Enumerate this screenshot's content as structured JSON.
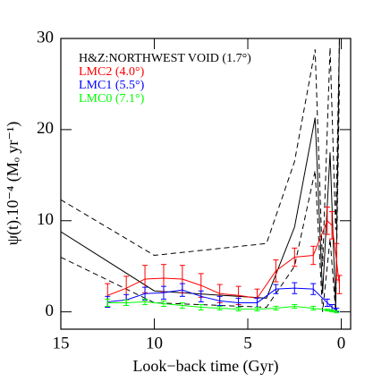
{
  "chart_data": {
    "type": "line",
    "xlabel": "Look−back time (Gyr)",
    "ylabel": "ψ(t).10⁻⁴ (Mₒ yr⁻¹)",
    "xlim": [
      15,
      -0.5
    ],
    "ylim": [
      -1.9,
      30
    ],
    "xticks": [
      15,
      10,
      5,
      0
    ],
    "yticks": [
      0,
      10,
      20,
      30
    ],
    "legend": "upper-left",
    "series": [
      {
        "name": "H&Z:NORTHWEST VOID (1.7°)",
        "color": "#000000",
        "x": [
          15,
          10,
          4,
          2.5,
          1.4,
          1.0,
          0.6,
          0.3,
          0.1
        ],
        "values": [
          8.8,
          2.3,
          1.5,
          9.3,
          21.3,
          2.0,
          17.5,
          0.3,
          30
        ]
      },
      {
        "color": "#000000",
        "dashed": true,
        "x": [
          15,
          10,
          4,
          2.5,
          1.4,
          1.0,
          0.6,
          0.3,
          0.1
        ],
        "values": [
          12.3,
          6.2,
          7.5,
          16.5,
          28.8,
          5.0,
          29,
          9,
          30
        ]
      },
      {
        "color": "#000000",
        "dashed": true,
        "x": [
          15,
          10,
          4,
          2.5,
          1.4,
          1.0,
          0.6,
          0.3,
          0.1
        ],
        "values": [
          6.0,
          1.0,
          0.5,
          5.0,
          15.5,
          0.0,
          8.0,
          0.0,
          25
        ]
      },
      {
        "name": "LMC2 (4.0°)",
        "color": "#ff0000",
        "x": [
          12.5,
          11.5,
          10.5,
          9.5,
          8.5,
          7.5,
          6.5,
          5.5,
          4.5,
          3.5,
          2.5,
          1.5,
          0.75,
          0.5,
          0.25,
          0.1
        ],
        "values": [
          1.8,
          2.6,
          3.6,
          3.7,
          3.6,
          2.9,
          2.0,
          1.8,
          1.5,
          4.5,
          6.0,
          6.2,
          10.0,
          9.5,
          5.5,
          3.0
        ],
        "errors": [
          1.3,
          1.3,
          1.5,
          1.5,
          1.5,
          1.3,
          1.0,
          1.0,
          1.0,
          1.2,
          1.0,
          1.0,
          1.5,
          1.5,
          2.0,
          1.0
        ]
      },
      {
        "name": "LMC1 (5.5°)",
        "color": "#0000ff",
        "x": [
          12.5,
          11.5,
          10.5,
          9.5,
          8.5,
          7.5,
          6.5,
          5.5,
          4.5,
          3.5,
          2.5,
          1.5,
          0.75,
          0.5,
          0.25
        ],
        "values": [
          1.1,
          1.3,
          2.0,
          2.1,
          2.4,
          1.7,
          1.2,
          1.0,
          1.0,
          2.5,
          2.6,
          2.5,
          1.0,
          0.5,
          0.2
        ],
        "errors": [
          0.6,
          0.6,
          0.7,
          0.7,
          0.7,
          0.6,
          0.5,
          0.5,
          0.5,
          0.5,
          0.6,
          0.6,
          0.4,
          0.3,
          0.2
        ]
      },
      {
        "name": "LMC0 (7.1°)",
        "color": "#00ff00",
        "x": [
          12.5,
          11.5,
          10.5,
          9.5,
          8.5,
          7.5,
          6.5,
          5.5,
          4.5,
          3.5,
          2.5,
          1.5,
          0.75,
          0.5,
          0.25
        ],
        "values": [
          1.0,
          1.0,
          1.1,
          0.9,
          0.7,
          0.5,
          0.4,
          0.3,
          0.3,
          0.4,
          0.6,
          0.4,
          0.2,
          0.1,
          0.0
        ],
        "errors": [
          0.4,
          0.3,
          0.3,
          0.3,
          0.3,
          0.3,
          0.2,
          0.2,
          0.2,
          0.2,
          0.2,
          0.2,
          0.1,
          0.1,
          0.1
        ]
      }
    ]
  }
}
